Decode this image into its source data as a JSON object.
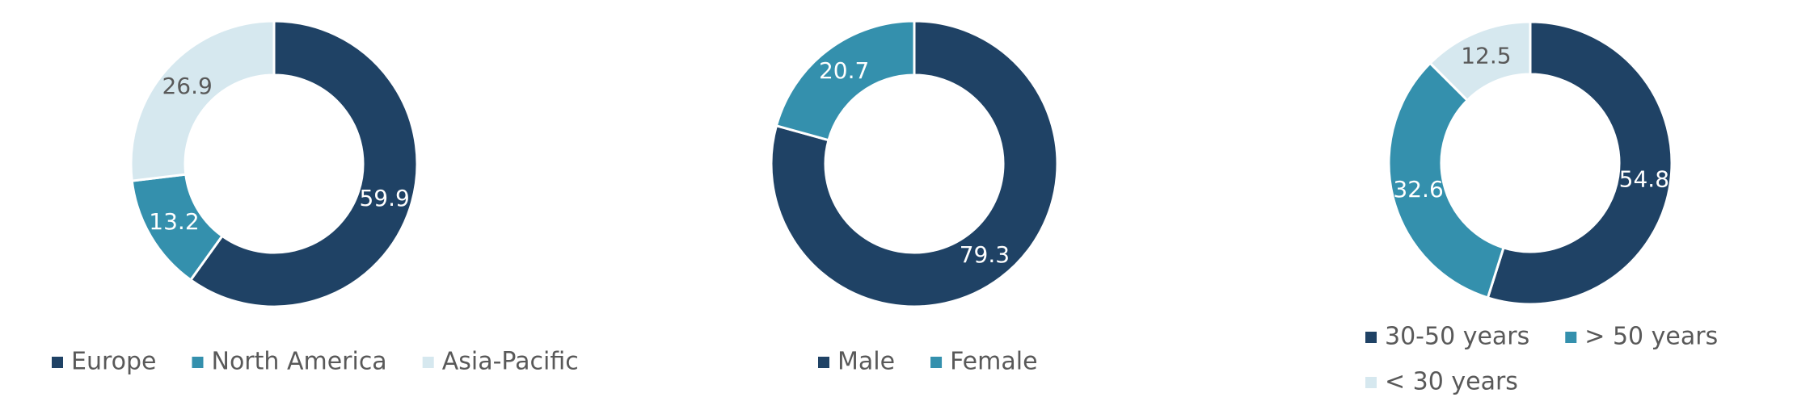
{
  "chart_data": [
    {
      "type": "donut",
      "categories": [
        "Europe",
        "North America",
        "Asia-Pacific"
      ],
      "values": [
        59.9,
        13.2,
        26.9
      ],
      "colors": [
        "#1f4265",
        "#3490ad",
        "#d6e8ef"
      ]
    },
    {
      "type": "donut",
      "categories": [
        "Male",
        "Female"
      ],
      "values": [
        79.3,
        20.7
      ],
      "colors": [
        "#1f4265",
        "#3490ad"
      ]
    },
    {
      "type": "donut",
      "categories": [
        "30-50 years",
        "> 50 years",
        "< 30 years"
      ],
      "values": [
        54.8,
        32.6,
        12.5
      ],
      "colors": [
        "#1f4265",
        "#3490ad",
        "#d6e8ef"
      ]
    }
  ]
}
